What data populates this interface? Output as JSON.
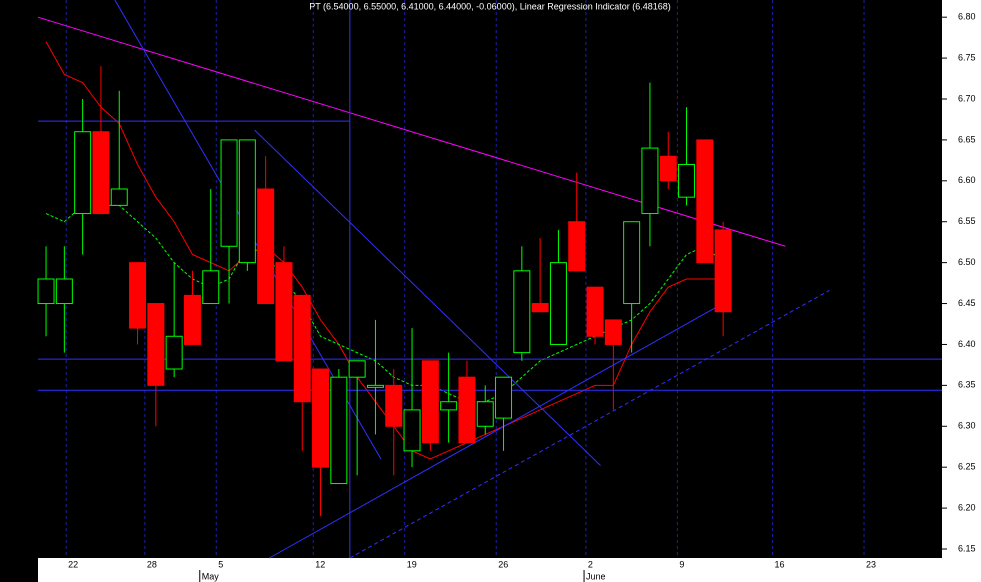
{
  "chart_data": {
    "type": "candlestick",
    "title": "PT (6.54000, 6.55000, 6.41000, 6.44000, -0.06000), Linear Regression Indicator (6.48168)",
    "x": [
      0,
      1,
      2,
      3,
      4,
      5,
      6,
      7,
      8,
      9,
      10,
      11,
      12,
      13,
      14,
      15,
      16,
      17,
      18,
      19,
      20,
      21,
      22,
      23,
      24,
      25,
      26,
      27,
      28,
      29,
      30,
      31,
      32,
      33,
      34,
      35,
      36,
      37
    ],
    "open": [
      6.45,
      6.45,
      6.56,
      6.66,
      6.57,
      6.5,
      6.45,
      6.37,
      6.46,
      6.45,
      6.52,
      6.5,
      6.59,
      6.5,
      6.46,
      6.37,
      6.23,
      6.36,
      6.35,
      6.35,
      6.27,
      6.38,
      6.32,
      6.36,
      6.3,
      6.31,
      6.39,
      6.45,
      6.4,
      6.55,
      6.47,
      6.43,
      6.45,
      6.56,
      6.63,
      6.58,
      6.65,
      6.54
    ],
    "high": [
      6.52,
      6.52,
      6.7,
      6.74,
      6.71,
      6.5,
      6.45,
      6.5,
      6.49,
      6.59,
      6.65,
      6.65,
      6.63,
      6.52,
      6.46,
      6.37,
      6.37,
      6.38,
      6.43,
      6.37,
      6.42,
      6.38,
      6.39,
      6.38,
      6.35,
      6.36,
      6.52,
      6.53,
      6.54,
      6.61,
      6.47,
      6.43,
      6.55,
      6.72,
      6.66,
      6.69,
      6.65,
      6.55
    ],
    "low": [
      6.41,
      6.39,
      6.51,
      6.56,
      6.57,
      6.4,
      6.3,
      6.36,
      6.4,
      6.45,
      6.45,
      6.49,
      6.45,
      6.38,
      6.27,
      6.19,
      6.23,
      6.24,
      6.29,
      6.24,
      6.25,
      6.27,
      6.28,
      6.28,
      6.29,
      6.27,
      6.38,
      6.44,
      6.4,
      6.49,
      6.4,
      6.32,
      6.39,
      6.52,
      6.59,
      6.57,
      6.5,
      6.41
    ],
    "close": [
      6.48,
      6.48,
      6.66,
      6.56,
      6.59,
      6.42,
      6.35,
      6.41,
      6.4,
      6.49,
      6.65,
      6.65,
      6.45,
      6.38,
      6.33,
      6.25,
      6.36,
      6.38,
      6.35,
      6.3,
      6.32,
      6.28,
      6.33,
      6.28,
      6.33,
      6.36,
      6.49,
      6.44,
      6.5,
      6.49,
      6.41,
      6.4,
      6.55,
      6.64,
      6.6,
      6.62,
      6.5,
      6.44
    ],
    "up_color": "#00ff00",
    "down_color": "#ff0000",
    "overlays": [
      {
        "color": "#ff0000",
        "dashed": false,
        "values": [
          6.77,
          6.73,
          6.72,
          6.69,
          6.67,
          6.62,
          6.58,
          6.55,
          6.51,
          6.5,
          6.49,
          6.51,
          6.52,
          6.5,
          6.47,
          6.43,
          6.4,
          6.36,
          6.33,
          6.3,
          6.27,
          6.26,
          6.27,
          6.28,
          6.29,
          6.3,
          6.31,
          6.32,
          6.33,
          6.34,
          6.35,
          6.35,
          6.4,
          6.44,
          6.47,
          6.48,
          6.48,
          6.48
        ]
      },
      {
        "color": "#00ff00",
        "dashed": true,
        "values": [
          6.56,
          6.55,
          6.57,
          6.57,
          6.57,
          6.55,
          6.53,
          6.5,
          6.48,
          6.47,
          6.48,
          6.52,
          6.51,
          6.48,
          6.45,
          6.41,
          6.4,
          6.39,
          6.38,
          6.36,
          6.35,
          6.35,
          6.34,
          6.33,
          6.33,
          6.34,
          6.36,
          6.38,
          6.39,
          6.4,
          6.41,
          6.42,
          6.43,
          6.45,
          6.48,
          6.51,
          6.52,
          6.5
        ]
      }
    ],
    "trendlines": [
      {
        "color": "#ff00ff",
        "dashed": false,
        "points": [
          [
            -0.44,
            6.8
          ],
          [
            40.4,
            6.52
          ]
        ]
      },
      {
        "color": "#3030ff",
        "dashed": false,
        "points": [
          [
            3.76,
            6.821
          ],
          [
            18.3,
            6.26
          ]
        ]
      },
      {
        "color": "#3030ff",
        "dashed": false,
        "points": [
          [
            11.4,
            6.662
          ],
          [
            30.3,
            6.252
          ]
        ]
      },
      {
        "color": "#3030ff",
        "dashed": false,
        "points": [
          [
            12.2,
            6.139
          ],
          [
            37.3,
            6.454
          ]
        ]
      },
      {
        "color": "#3030ff",
        "dashed": true,
        "points": [
          [
            16.6,
            6.139
          ],
          [
            42.8,
            6.466
          ]
        ]
      },
      {
        "color": "#3030ff",
        "dashed": false,
        "points": [
          [
            -0.44,
            6.673
          ],
          [
            16.6,
            6.673
          ]
        ]
      },
      {
        "color": "#3030ff",
        "dashed": false,
        "points": [
          [
            -0.44,
            6.382
          ],
          [
            48.96,
            6.382
          ]
        ]
      },
      {
        "color": "#3030ff",
        "dashed": false,
        "points": [
          [
            -0.44,
            6.344
          ],
          [
            48.96,
            6.344
          ]
        ]
      },
      {
        "color": "#3030ff",
        "dashed": false,
        "points": [
          [
            16.6,
            6.821
          ],
          [
            16.6,
            6.139
          ]
        ]
      }
    ],
    "xlim": [
      -0.44,
      48.96
    ],
    "ylim": [
      6.139,
      6.821
    ],
    "xticks": [
      {
        "value": 1.1,
        "label": "22"
      },
      {
        "value": 5.4,
        "label": "28"
      },
      {
        "value": 9.3,
        "label": "5"
      },
      {
        "value": 14.6,
        "label": "12"
      },
      {
        "value": 19.6,
        "label": "19"
      },
      {
        "value": 24.6,
        "label": "26"
      },
      {
        "value": 29.5,
        "label": "2"
      },
      {
        "value": 34.5,
        "label": "9"
      },
      {
        "value": 39.7,
        "label": "16"
      },
      {
        "value": 44.7,
        "label": "23"
      }
    ],
    "month_ticks": [
      {
        "value": 8.4,
        "label": "May"
      },
      {
        "value": 29.4,
        "label": "June"
      }
    ],
    "yticks": [
      {
        "value": 6.15,
        "label": "6.15"
      },
      {
        "value": 6.2,
        "label": "6.20"
      },
      {
        "value": 6.25,
        "label": "6.25"
      },
      {
        "value": 6.3,
        "label": "6.30"
      },
      {
        "value": 6.35,
        "label": "6.35"
      },
      {
        "value": 6.4,
        "label": "6.40"
      },
      {
        "value": 6.45,
        "label": "6.45"
      },
      {
        "value": 6.5,
        "label": "6.50"
      },
      {
        "value": 6.55,
        "label": "6.55"
      },
      {
        "value": 6.6,
        "label": "6.60"
      },
      {
        "value": 6.65,
        "label": "6.65"
      },
      {
        "value": 6.7,
        "label": "6.70"
      },
      {
        "value": 6.75,
        "label": "6.75"
      },
      {
        "value": 6.8,
        "label": "6.80"
      }
    ],
    "grid": true
  }
}
